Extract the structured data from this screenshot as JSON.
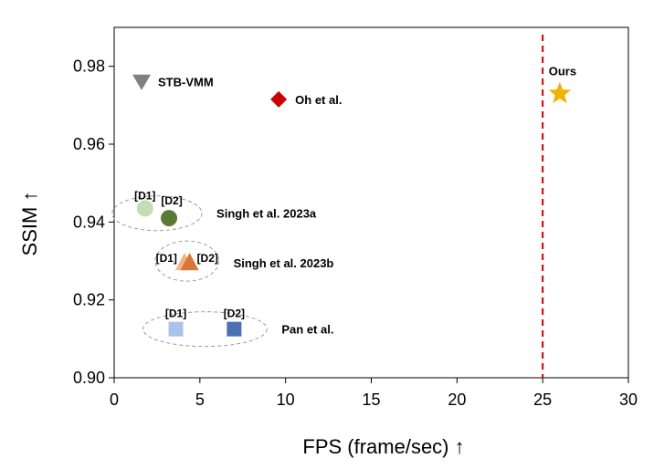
{
  "chart_data": {
    "type": "scatter",
    "xlabel": "FPS (frame/sec) ↑",
    "ylabel": "SSIM ↑",
    "xlim": [
      0,
      30
    ],
    "ylim": [
      0.9,
      0.99
    ],
    "xticks": [
      "0",
      "5",
      "10",
      "15",
      "20",
      "25",
      "30"
    ],
    "yticks": [
      "0.90",
      "0.92",
      "0.94",
      "0.96",
      "0.98"
    ],
    "grid": false,
    "reference_line": {
      "x": 25,
      "color": "#cc0000",
      "style": "dashed"
    },
    "points": [
      {
        "label": "STB-VMM",
        "x": 1.6,
        "y": 0.976,
        "marker": "triangle-down",
        "color": "#808080"
      },
      {
        "label": "Oh et al.",
        "x": 9.6,
        "y": 0.9715,
        "marker": "diamond",
        "color": "#cc0000"
      },
      {
        "label": "Ours",
        "x": 26.0,
        "y": 0.973,
        "marker": "star",
        "color": "#f0b400"
      },
      {
        "label": "[D1]",
        "group": "Singh et al. 2023a",
        "x": 1.8,
        "y": 0.9435,
        "marker": "circle",
        "color": "#c5deb1"
      },
      {
        "label": "[D2]",
        "group": "Singh et al. 2023a",
        "x": 3.2,
        "y": 0.941,
        "marker": "circle",
        "color": "#5b7a34"
      },
      {
        "label": "[D1]",
        "group": "Singh et al. 2023b",
        "x": 4.1,
        "y": 0.9295,
        "marker": "triangle-up",
        "color": "#f0b486"
      },
      {
        "label": "[D2]",
        "group": "Singh et al. 2023b",
        "x": 4.4,
        "y": 0.9295,
        "marker": "triangle-up",
        "color": "#d9763a"
      },
      {
        "label": "[D1]",
        "group": "Pan et al.",
        "x": 3.6,
        "y": 0.9125,
        "marker": "square",
        "color": "#a9c3e8"
      },
      {
        "label": "[D2]",
        "group": "Pan et al.",
        "x": 7.0,
        "y": 0.9125,
        "marker": "square",
        "color": "#4a72b0"
      }
    ],
    "groups": [
      {
        "name": "Singh et al. 2023a"
      },
      {
        "name": "Singh et al. 2023b"
      },
      {
        "name": "Pan et al."
      }
    ]
  }
}
